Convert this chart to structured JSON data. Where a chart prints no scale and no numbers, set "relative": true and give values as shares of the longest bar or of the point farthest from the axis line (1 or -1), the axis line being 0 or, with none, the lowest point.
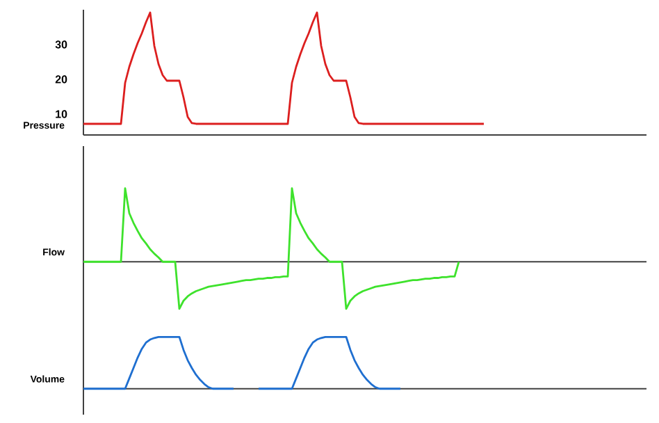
{
  "chart_data": [
    {
      "type": "line",
      "ylabel": "Pressure",
      "ylim": [
        4,
        40
      ],
      "yticks": [
        10,
        20,
        30
      ],
      "tick_labels": "y",
      "categories": [
        null,
        null,
        null,
        null,
        null,
        null,
        null,
        null,
        null,
        null,
        null,
        null,
        null,
        null,
        null,
        null,
        null,
        null,
        null,
        null,
        null,
        null,
        null,
        null,
        null,
        null,
        null,
        null,
        null,
        null,
        null,
        null,
        null,
        null,
        null,
        null,
        null,
        null,
        null,
        null,
        null,
        null,
        null,
        null,
        null,
        null,
        null,
        null,
        null,
        null,
        null,
        null,
        null,
        null,
        null,
        null,
        null,
        null,
        null,
        null,
        null,
        null,
        null,
        null,
        null,
        null,
        null,
        null,
        null,
        null,
        null,
        null,
        null,
        null,
        null,
        null,
        null,
        null,
        null,
        null,
        null,
        null,
        null,
        null,
        null,
        null,
        null,
        null,
        null,
        null,
        null,
        null,
        null,
        null,
        null,
        null,
        null,
        null,
        null,
        null,
        null,
        null,
        null,
        null,
        null,
        null,
        null,
        null,
        null,
        null,
        null,
        null,
        null,
        null,
        null,
        null,
        null,
        null,
        null,
        null,
        null,
        null,
        null,
        null,
        null,
        null,
        null,
        null,
        null,
        null,
        null,
        null,
        null,
        null,
        null,
        null
      ],
      "series": [
        {
          "color": "#dc1f1f",
          "values": [
            7.2,
            7.2,
            7.2,
            7.2,
            7.2,
            7.2,
            7.2,
            7.2,
            7.2,
            7.2,
            19,
            23.6,
            27.2,
            30.4,
            33.2,
            36.4,
            39.2,
            29.6,
            24.4,
            21.2,
            19.6,
            19.6,
            19.6,
            19.6,
            14.8,
            9.2,
            7.4,
            7.2,
            7.2,
            7.2,
            7.2,
            7.2,
            7.2,
            7.2,
            7.2,
            7.2,
            7.2,
            7.2,
            7.2,
            7.2,
            7.2,
            7.2,
            7.2,
            7.2,
            7.2,
            7.2,
            7.2,
            7.2,
            7.2,
            7.2,
            19,
            23.6,
            27.2,
            30.4,
            33.2,
            36.4,
            39.2,
            29.6,
            24.4,
            21.2,
            19.6,
            19.6,
            19.6,
            19.6,
            14.8,
            9.2,
            7.4,
            7.2,
            7.2,
            7.2,
            7.2,
            7.2,
            7.2,
            7.2,
            7.2,
            7.2,
            7.2,
            7.2,
            7.2,
            7.2,
            7.2,
            7.2,
            7.2,
            7.2,
            7.2,
            7.2,
            7.2,
            7.2,
            7.2,
            7.2,
            7.2,
            7.2,
            7.2,
            7.2,
            7.2,
            7.2,
            7.2,
            null,
            null,
            null,
            null,
            null,
            null,
            null,
            null,
            null,
            null,
            null,
            null,
            null,
            null,
            null,
            null,
            null,
            null,
            null,
            null,
            null,
            null,
            null,
            null,
            null,
            null,
            null,
            null,
            null,
            null,
            null,
            null,
            null,
            null,
            null,
            null,
            null,
            null,
            null
          ]
        }
      ]
    },
    {
      "type": "line",
      "ylabel": "Flow",
      "relative": true,
      "tick_labels": false,
      "categories": [
        null,
        null,
        null,
        null,
        null,
        null,
        null,
        null,
        null,
        null,
        null,
        null,
        null,
        null,
        null,
        null,
        null,
        null,
        null,
        null,
        null,
        null,
        null,
        null,
        null,
        null,
        null,
        null,
        null,
        null,
        null,
        null,
        null,
        null,
        null,
        null,
        null,
        null,
        null,
        null,
        null,
        null,
        null,
        null,
        null,
        null,
        null,
        null,
        null,
        null,
        null,
        null,
        null,
        null,
        null,
        null,
        null,
        null,
        null,
        null,
        null,
        null,
        null,
        null,
        null,
        null,
        null,
        null,
        null,
        null,
        null,
        null,
        null,
        null,
        null,
        null,
        null,
        null,
        null,
        null,
        null,
        null,
        null,
        null,
        null,
        null,
        null,
        null,
        null,
        null,
        null,
        null,
        null,
        null,
        null,
        null,
        null,
        null,
        null,
        null,
        null,
        null,
        null,
        null,
        null,
        null,
        null,
        null,
        null,
        null,
        null,
        null,
        null,
        null,
        null,
        null,
        null,
        null,
        null,
        null,
        null,
        null,
        null,
        null,
        null,
        null,
        null,
        null,
        null,
        null,
        null,
        null,
        null,
        null,
        null,
        null
      ],
      "series": [
        {
          "color": "#3ee22c",
          "values": [
            0,
            0,
            0,
            0,
            0,
            0,
            0,
            0,
            0,
            0,
            1,
            0.66,
            0.53,
            0.42,
            0.32,
            0.25,
            0.17,
            0.11,
            0.06,
            0,
            0,
            0,
            0,
            -0.64,
            -0.53,
            -0.47,
            -0.43,
            -0.4,
            -0.38,
            -0.36,
            -0.34,
            -0.33,
            -0.32,
            -0.31,
            -0.3,
            -0.29,
            -0.28,
            -0.27,
            -0.26,
            -0.25,
            -0.25,
            -0.24,
            -0.23,
            -0.23,
            -0.22,
            -0.22,
            -0.21,
            -0.21,
            -0.2,
            -0.2,
            1,
            0.66,
            0.53,
            0.42,
            0.32,
            0.25,
            0.17,
            0.11,
            0.06,
            0,
            0,
            0,
            0,
            -0.64,
            -0.53,
            -0.47,
            -0.43,
            -0.4,
            -0.38,
            -0.36,
            -0.34,
            -0.33,
            -0.32,
            -0.31,
            -0.3,
            -0.29,
            -0.28,
            -0.27,
            -0.26,
            -0.25,
            -0.25,
            -0.24,
            -0.23,
            -0.23,
            -0.22,
            -0.22,
            -0.21,
            -0.21,
            -0.2,
            -0.2,
            0,
            null,
            null,
            null,
            null,
            null,
            null,
            null,
            null,
            null,
            null,
            null,
            null,
            null,
            null,
            null,
            null,
            null,
            null,
            null,
            null,
            null,
            null,
            null,
            null,
            null,
            null,
            null,
            null,
            null,
            null,
            null,
            null,
            null,
            null,
            null,
            null,
            null,
            null,
            null,
            null,
            null,
            null,
            null,
            null,
            null
          ]
        }
      ]
    },
    {
      "type": "line",
      "ylabel": "Volume",
      "relative": true,
      "tick_labels": false,
      "categories": [
        null,
        null,
        null,
        null,
        null,
        null,
        null,
        null,
        null,
        null,
        null,
        null,
        null,
        null,
        null,
        null,
        null,
        null,
        null,
        null,
        null,
        null,
        null,
        null,
        null,
        null,
        null,
        null,
        null,
        null,
        null,
        null,
        null,
        null,
        null,
        null,
        null,
        null,
        null,
        null,
        null,
        null,
        null,
        null,
        null,
        null,
        null,
        null,
        null,
        null,
        null,
        null,
        null,
        null,
        null,
        null,
        null,
        null,
        null,
        null,
        null,
        null,
        null,
        null,
        null,
        null,
        null,
        null,
        null,
        null,
        null,
        null,
        null,
        null,
        null,
        null,
        null,
        null,
        null,
        null,
        null,
        null,
        null,
        null,
        null,
        null,
        null,
        null,
        null,
        null,
        null,
        null,
        null,
        null,
        null,
        null,
        null,
        null,
        null,
        null,
        null,
        null,
        null,
        null,
        null,
        null,
        null,
        null,
        null,
        null,
        null,
        null,
        null,
        null,
        null,
        null,
        null,
        null,
        null,
        null,
        null,
        null,
        null,
        null,
        null,
        null,
        null,
        null,
        null,
        null,
        null,
        null,
        null,
        null,
        null,
        null
      ],
      "series": [
        {
          "color": "#1f6fd0",
          "values": [
            0,
            0,
            0,
            0,
            0,
            0,
            0,
            0,
            0,
            0,
            0,
            0.2,
            0.4,
            0.6,
            0.77,
            0.89,
            0.95,
            0.98,
            1,
            1,
            1,
            1,
            1,
            1,
            0.75,
            0.55,
            0.4,
            0.27,
            0.17,
            0.09,
            0.03,
            0,
            0,
            0,
            0,
            0,
            0,
            null,
            null,
            null,
            null,
            null,
            0,
            0,
            0,
            0,
            0,
            0,
            0,
            0,
            0,
            0.2,
            0.4,
            0.6,
            0.77,
            0.89,
            0.95,
            0.98,
            1,
            1,
            1,
            1,
            1,
            1,
            0.75,
            0.55,
            0.4,
            0.27,
            0.17,
            0.09,
            0.03,
            0,
            0,
            0,
            0,
            0,
            0,
            null,
            null,
            null,
            null,
            null,
            null,
            null,
            null,
            null,
            null,
            null,
            null,
            null,
            null,
            null,
            null,
            null,
            null,
            null,
            null,
            null,
            null,
            null,
            null,
            null,
            null,
            null,
            null,
            null,
            null,
            null,
            null,
            null,
            null,
            null,
            null,
            null,
            null,
            null,
            null,
            null,
            null,
            null,
            null,
            null,
            null,
            null,
            null,
            null,
            null,
            null,
            null,
            null,
            null,
            null,
            null,
            null,
            null,
            null
          ]
        }
      ]
    }
  ]
}
